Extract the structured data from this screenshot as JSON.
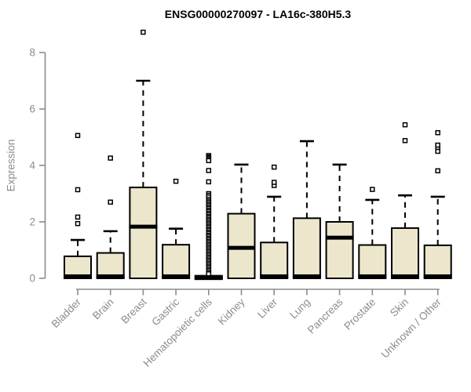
{
  "colors": {
    "box_fill": "#ece7cc",
    "box_stroke": "#000000",
    "median": "#000000",
    "whisker": "#000000",
    "outlier_fill": "#ffffff",
    "axis": "#8c8c8c",
    "tick_label": "#8c8c8c",
    "title": "#000000",
    "background": "#ffffff"
  },
  "chart_data": {
    "type": "boxplot",
    "title": "ENSG00000270097 - LA16c-380H5.3",
    "xlabel": "",
    "ylabel": "Expression",
    "ylim": [
      0,
      8.8
    ],
    "yticks": [
      0,
      2,
      4,
      6,
      8
    ],
    "grid": false,
    "legend": "none",
    "categories": [
      "Bladder",
      "Brain",
      "Breast",
      "Gastric",
      "Hematopoietic cells",
      "Kidney",
      "Liver",
      "Lung",
      "Pancreas",
      "Prostate",
      "Skin",
      "Unknown / Other"
    ],
    "boxes": [
      {
        "label": "Bladder",
        "q1": 0,
        "median": 0.07,
        "q3": 0.78,
        "whisker_low": 0,
        "whisker_high": 1.36,
        "outliers": [
          1.94,
          2.17,
          3.14,
          5.06
        ]
      },
      {
        "label": "Brain",
        "q1": 0,
        "median": 0.07,
        "q3": 0.9,
        "whisker_low": 0,
        "whisker_high": 1.67,
        "outliers": [
          2.7,
          4.26
        ]
      },
      {
        "label": "Breast",
        "q1": 0,
        "median": 1.83,
        "q3": 3.22,
        "whisker_low": 0,
        "whisker_high": 7.0,
        "outliers": [
          8.72
        ]
      },
      {
        "label": "Gastric",
        "q1": 0,
        "median": 0.07,
        "q3": 1.19,
        "whisker_low": 0,
        "whisker_high": 1.76,
        "outliers": [
          3.44
        ]
      },
      {
        "label": "Hematopoietic cells",
        "q1": 0,
        "median": 0.03,
        "q3": 0.05,
        "whisker_low": 0,
        "whisker_high": 0.05,
        "outliers": [
          4.35,
          4.3,
          4.26,
          4.21,
          4.17,
          3.82,
          3.42,
          3.0,
          2.94,
          2.88,
          2.8,
          2.74,
          2.69,
          2.63,
          2.58,
          2.52,
          2.47,
          2.41,
          2.36,
          2.3,
          2.25,
          2.19,
          2.14,
          2.08,
          2.03,
          1.97,
          1.92,
          1.86,
          1.81,
          1.75,
          1.7,
          1.64,
          1.59,
          1.53,
          1.48,
          1.42,
          1.37,
          1.31,
          1.26,
          1.2,
          1.15,
          1.09,
          1.04,
          0.98,
          0.93,
          0.87,
          0.82,
          0.76,
          0.71,
          0.65,
          0.6,
          0.54,
          0.49,
          0.43,
          0.38,
          0.32,
          0.27,
          0.21,
          0.16
        ]
      },
      {
        "label": "Kidney",
        "q1": 0,
        "median": 1.08,
        "q3": 2.29,
        "whisker_low": 0,
        "whisker_high": 4.03,
        "outliers": []
      },
      {
        "label": "Liver",
        "q1": 0,
        "median": 0.07,
        "q3": 1.27,
        "whisker_low": 0,
        "whisker_high": 2.89,
        "outliers": [
          3.29,
          3.4,
          3.94
        ]
      },
      {
        "label": "Lung",
        "q1": 0,
        "median": 0.07,
        "q3": 2.13,
        "whisker_low": 0,
        "whisker_high": 4.86,
        "outliers": []
      },
      {
        "label": "Pancreas",
        "q1": 0,
        "median": 1.44,
        "q3": 2.0,
        "whisker_low": 0,
        "whisker_high": 4.03,
        "outliers": []
      },
      {
        "label": "Prostate",
        "q1": 0,
        "median": 0.07,
        "q3": 1.18,
        "whisker_low": 0,
        "whisker_high": 2.78,
        "outliers": [
          3.15
        ]
      },
      {
        "label": "Skin",
        "q1": 0,
        "median": 0.07,
        "q3": 1.78,
        "whisker_low": 0,
        "whisker_high": 2.94,
        "outliers": [
          4.88,
          5.44
        ]
      },
      {
        "label": "Unknown / Other",
        "q1": 0,
        "median": 0.07,
        "q3": 1.17,
        "whisker_low": 0,
        "whisker_high": 2.89,
        "outliers": [
          3.81,
          4.5,
          4.64,
          4.72,
          5.16
        ]
      }
    ]
  }
}
